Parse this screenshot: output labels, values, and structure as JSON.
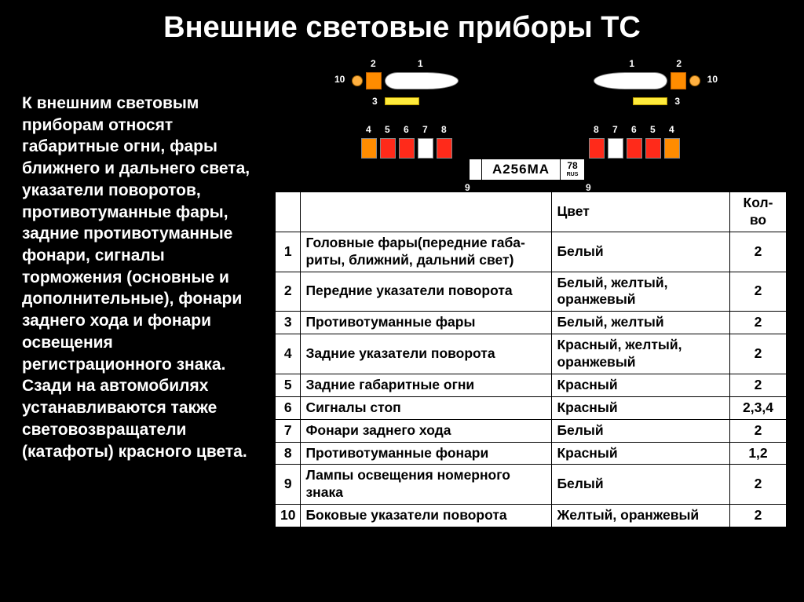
{
  "title": "Внешние световые приборы ТС",
  "description": "К внешним световым приборам относят габаритные огни, фары ближнего и дальнего света, указатели поворотов, противотуманные фары, задние противотуманные фонари, сигналы торможения (основные и дополнительные), фонари заднего хода и фонари освещения регистрационного знака. Сзади на автомобилях устанавливаются также световозвращатели (катафоты) красного цвета.",
  "colors": {
    "background": "#000000",
    "text": "#ffffff",
    "headlight": "#ffffff",
    "orange": "#ff8c00",
    "side_bulb": "#ffb040",
    "yellow": "#ffeb3b",
    "red": "#ff2a1a",
    "white": "#ffffff",
    "table_bg": "#ffffff",
    "table_border": "#000000"
  },
  "diagram": {
    "front_labels": {
      "side": "10",
      "orange": "2",
      "head": "1",
      "fog": "3"
    },
    "rear_sequence": [
      "4",
      "5",
      "6",
      "7",
      "8"
    ],
    "rear_colors": [
      "#ff8c00",
      "#ff2a1a",
      "#ff2a1a",
      "#ffffff",
      "#ff2a1a"
    ],
    "plate": {
      "number": "А256МА",
      "region": "78",
      "rus": "RUS",
      "label": "9"
    }
  },
  "table": {
    "headers": {
      "num": "",
      "name": "",
      "color": "Цвет",
      "qty": "Кол-во"
    },
    "rows": [
      {
        "n": "1",
        "name": "Головные фары(передние габа-\nриты, ближний, дальний свет)",
        "color": "Белый",
        "qty": "2"
      },
      {
        "n": "2",
        "name": "Передние указатели поворота",
        "color": "Белый, желтый, оранжевый",
        "qty": "2"
      },
      {
        "n": "3",
        "name": "Противотуманные фары",
        "color": "Белый, желтый",
        "qty": "2"
      },
      {
        "n": "4",
        "name": "Задние указатели поворота",
        "color": "Красный, желтый, оранжевый",
        "qty": "2"
      },
      {
        "n": "5",
        "name": "Задние габаритные огни",
        "color": "Красный",
        "qty": "2"
      },
      {
        "n": "6",
        "name": "Сигналы стоп",
        "color": "Красный",
        "qty": "2,3,4"
      },
      {
        "n": "7",
        "name": "Фонари заднего хода",
        "color": "Белый",
        "qty": "2"
      },
      {
        "n": "8",
        "name": "Противотуманные фонари",
        "color": "Красный",
        "qty": "1,2"
      },
      {
        "n": "9",
        "name": "Лампы освещения номерного знака",
        "color": "Белый",
        "qty": "2"
      },
      {
        "n": "10",
        "name": "Боковые указатели поворота",
        "color": "Желтый, оранжевый",
        "qty": "2"
      }
    ]
  }
}
